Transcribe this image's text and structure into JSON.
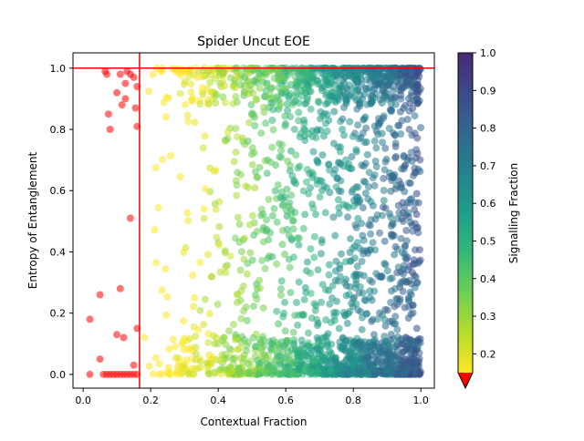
{
  "chart_data": {
    "type": "scatter",
    "title": "Spider Uncut EOE",
    "xlabel": "Contextual Fraction",
    "ylabel": "Entropy of Entanglement",
    "xlim": [
      -0.03,
      1.04
    ],
    "ylim": [
      -0.045,
      1.05
    ],
    "xticks": [
      "0.0",
      "0.2",
      "0.4",
      "0.6",
      "0.8",
      "1.0"
    ],
    "yticks": [
      "0.0",
      "0.2",
      "0.4",
      "0.6",
      "0.8",
      "1.0"
    ],
    "grid": false,
    "colorbar": {
      "label": "Signalling Fraction",
      "min": 0.15,
      "max": 1.0,
      "ticks": [
        "0.2",
        "0.3",
        "0.4",
        "0.5",
        "0.6",
        "0.7",
        "0.8",
        "0.9",
        "1.0"
      ],
      "colormap": "viridis_r",
      "under_color": "#ff0000",
      "extend": "min"
    },
    "reference_lines": [
      {
        "orientation": "vertical",
        "x": 0.167,
        "color": "#ff0000"
      },
      {
        "orientation": "horizontal",
        "y": 1.0,
        "color": "#ff0000"
      }
    ],
    "series": [
      {
        "color_rule": "red when signalling fraction is below 0.15",
        "marker_alpha": 0.55,
        "points": [
          [
            0.02,
            0.18
          ],
          [
            0.02,
            0.0
          ],
          [
            0.05,
            0.26
          ],
          [
            0.05,
            0.05
          ],
          [
            0.06,
            0.0
          ],
          [
            0.07,
            0.0
          ],
          [
            0.08,
            0.0
          ],
          [
            0.09,
            0.0
          ],
          [
            0.1,
            0.0
          ],
          [
            0.1,
            0.13
          ],
          [
            0.11,
            0.0
          ],
          [
            0.12,
            0.12
          ],
          [
            0.12,
            0.0
          ],
          [
            0.13,
            0.0
          ],
          [
            0.14,
            0.0
          ],
          [
            0.15,
            0.0
          ],
          [
            0.15,
            0.03
          ],
          [
            0.16,
            0.15
          ],
          [
            0.16,
            0.0
          ],
          [
            0.065,
            0.99
          ],
          [
            0.07,
            0.98
          ],
          [
            0.075,
            0.85
          ],
          [
            0.08,
            0.8
          ],
          [
            0.1,
            0.92
          ],
          [
            0.11,
            0.98
          ],
          [
            0.115,
            0.88
          ],
          [
            0.125,
            0.9
          ],
          [
            0.125,
            0.95
          ],
          [
            0.13,
            0.99
          ],
          [
            0.14,
            0.98
          ],
          [
            0.15,
            0.97
          ],
          [
            0.155,
            0.87
          ],
          [
            0.16,
            0.94
          ],
          [
            0.16,
            0.81
          ],
          [
            0.14,
            0.51
          ],
          [
            0.11,
            0.28
          ]
        ]
      }
    ]
  }
}
